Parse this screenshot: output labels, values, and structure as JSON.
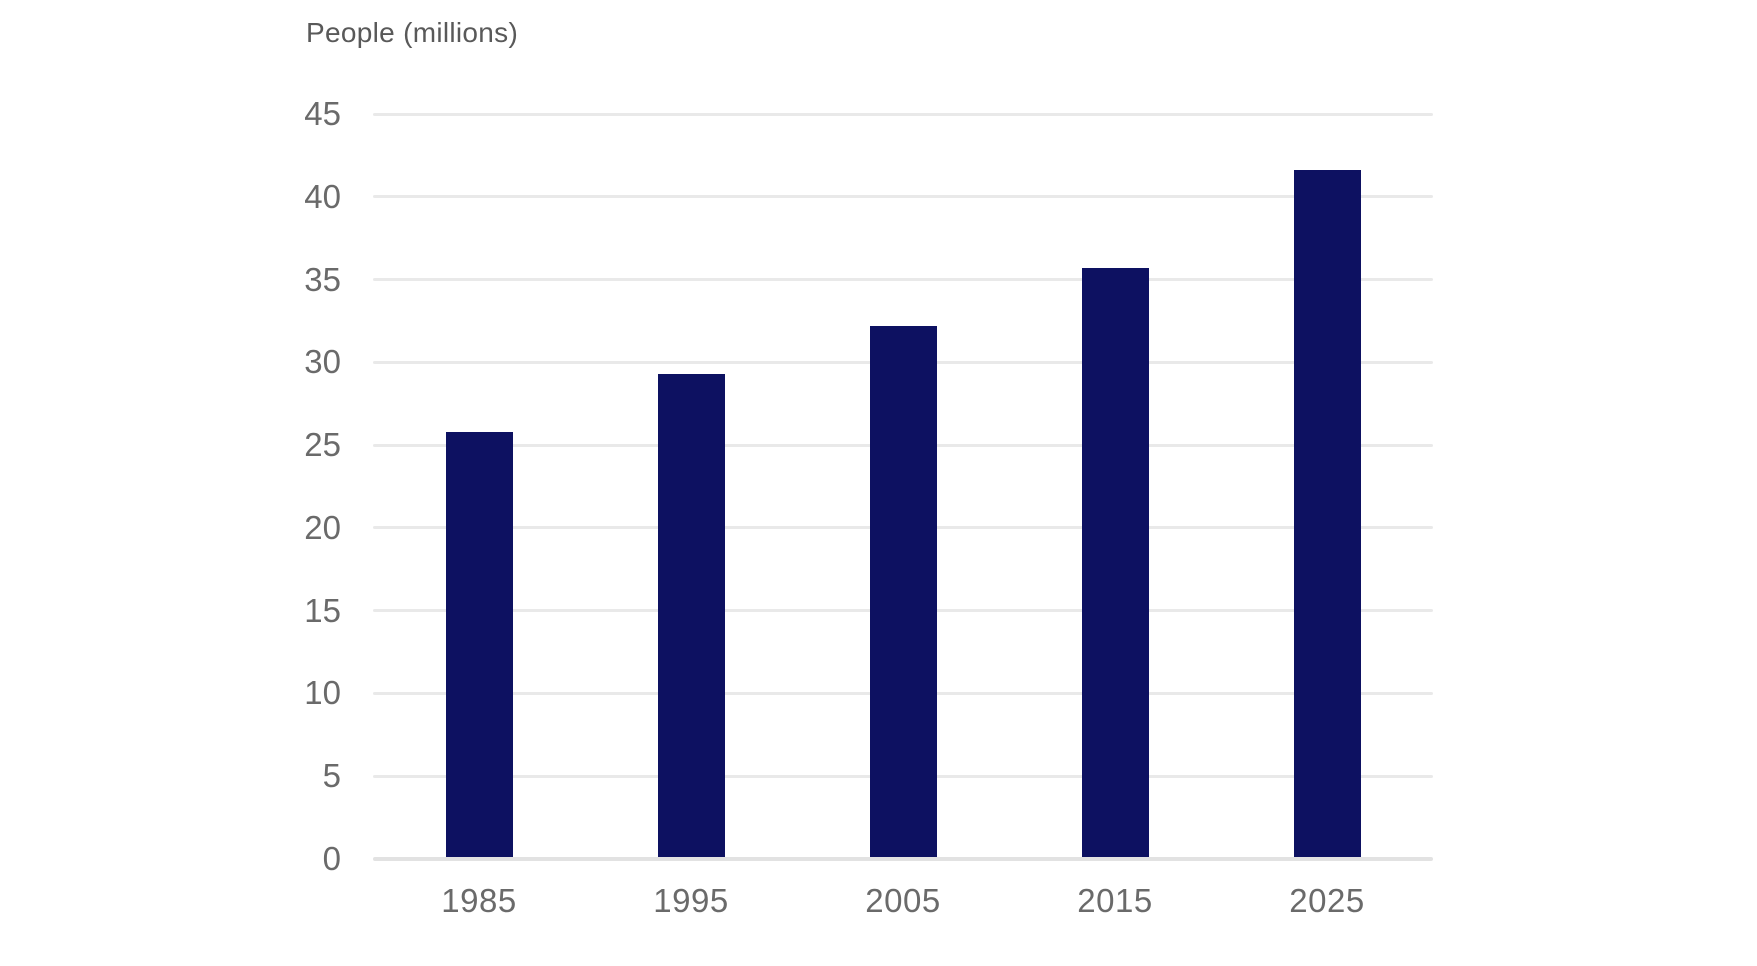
{
  "chart_data": {
    "type": "bar",
    "title": "People (millions)",
    "categories": [
      "1985",
      "1995",
      "2005",
      "2015",
      "2025"
    ],
    "values": [
      25.8,
      29.3,
      32.2,
      35.7,
      41.6
    ],
    "xlabel": "",
    "ylabel": "People (millions)",
    "ylim": [
      0,
      45
    ],
    "yticks": [
      0,
      5,
      10,
      15,
      20,
      25,
      30,
      35,
      40,
      45
    ],
    "grid": "horizontal",
    "legend_position": "none",
    "colors": {
      "bar": "#0d1161",
      "gridline": "#e9e9e9",
      "baseline": "#e2e2e2",
      "tick_label": "#6a6a6a",
      "title": "#595959",
      "background": "#ffffff"
    }
  }
}
